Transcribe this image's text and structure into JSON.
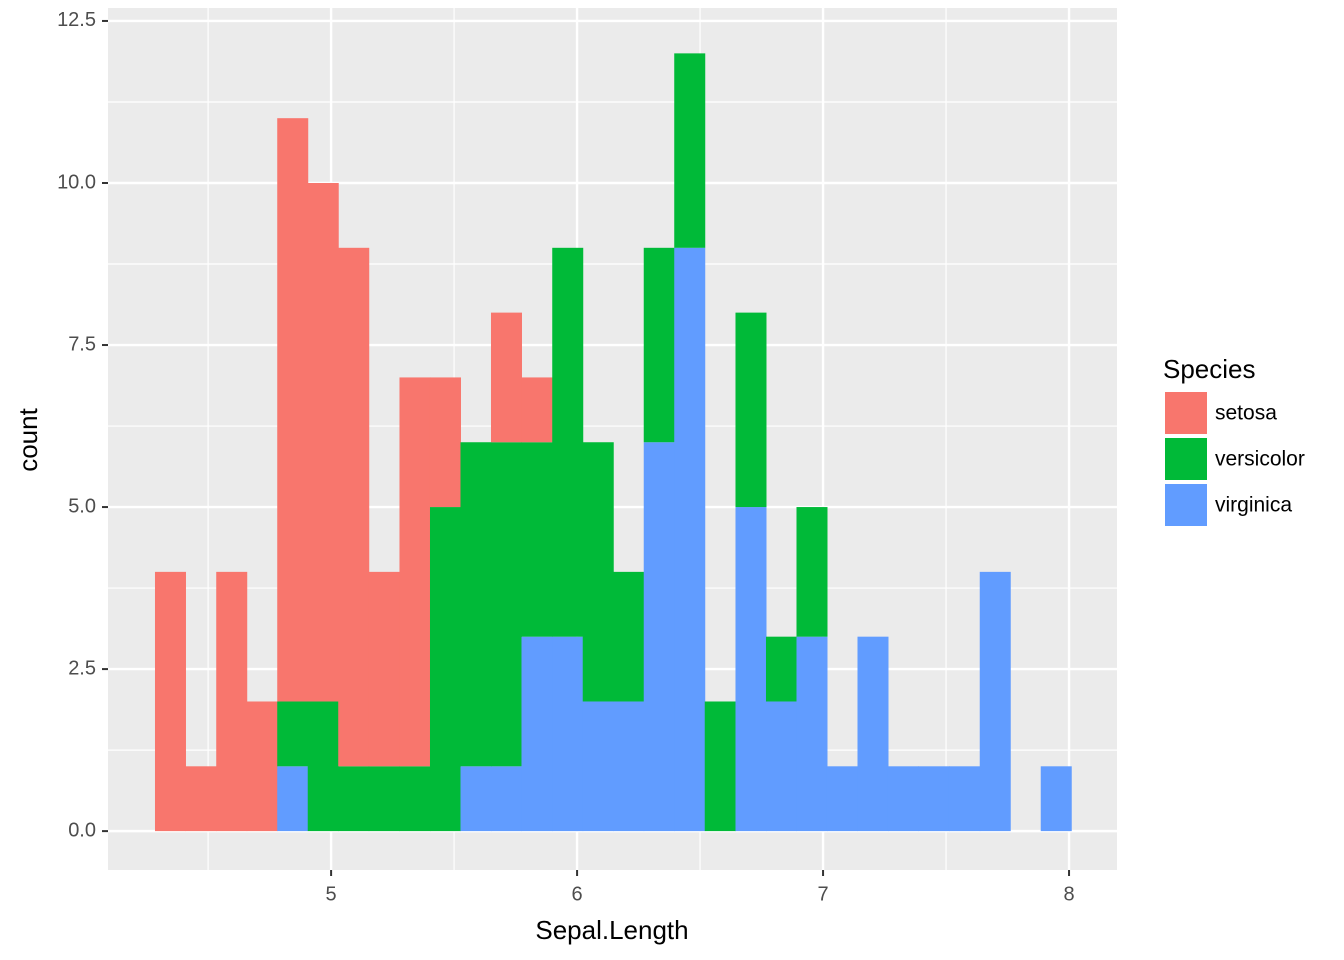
{
  "chart_data": {
    "type": "histogram",
    "x_label": "Sepal.Length",
    "y_label": "count",
    "legend_title": "Species",
    "bins": [
      4.284,
      4.408,
      4.533,
      4.657,
      4.781,
      4.905,
      5.029,
      5.153,
      5.278,
      5.402,
      5.526,
      5.65,
      5.774,
      5.899,
      6.023,
      6.147,
      6.271,
      6.395,
      6.519,
      6.644,
      6.768,
      6.892,
      7.016,
      7.14,
      7.264,
      7.388,
      7.512,
      7.637,
      7.761,
      7.885,
      8.009
    ],
    "series": [
      {
        "name": "setosa",
        "color": "#f8766d",
        "values": [
          4,
          1,
          4,
          2,
          9,
          8,
          8,
          3,
          6,
          2,
          0,
          2,
          1,
          0,
          0,
          0,
          0,
          0,
          0,
          0,
          0,
          0,
          0,
          0,
          0,
          0,
          0,
          0,
          0,
          0
        ]
      },
      {
        "name": "versicolor",
        "color": "#00ba38",
        "values": [
          0,
          0,
          0,
          0,
          1,
          2,
          1,
          1,
          1,
          5,
          5,
          5,
          3,
          6,
          4,
          2,
          3,
          3,
          2,
          3,
          1,
          2,
          0,
          0,
          0,
          0,
          0,
          0,
          0,
          0
        ]
      },
      {
        "name": "virginica",
        "color": "#619cff",
        "values": [
          0,
          0,
          0,
          0,
          1,
          0,
          0,
          0,
          0,
          0,
          1,
          1,
          3,
          3,
          2,
          2,
          6,
          9,
          0,
          5,
          2,
          3,
          1,
          3,
          1,
          1,
          1,
          4,
          0,
          1
        ]
      }
    ],
    "xlim": [
      4.093,
      8.195
    ],
    "xticks": [
      5,
      6,
      7,
      8
    ],
    "ylim": [
      -0.6,
      12.7
    ],
    "yticks": [
      {
        "value": 0,
        "label": "0.0"
      },
      2.5,
      {
        "value": 5,
        "label": "5.0"
      },
      7.5,
      {
        "value": 10,
        "label": "10.0"
      },
      12.5
    ],
    "grid": true,
    "legend_position": "right"
  }
}
